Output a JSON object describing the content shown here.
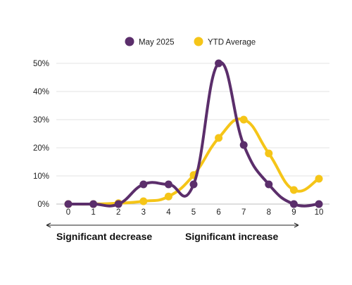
{
  "chart_data": {
    "type": "line",
    "title": "",
    "xlabel": "",
    "ylabel": "",
    "x": [
      0,
      1,
      2,
      3,
      4,
      5,
      6,
      7,
      8,
      9,
      10
    ],
    "ylim": [
      0,
      50
    ],
    "yticks": [
      "0%",
      "10%",
      "20%",
      "30%",
      "40%",
      "50%"
    ],
    "grid": true,
    "legend_position": "top",
    "series": [
      {
        "name": "May 2025",
        "color": "#5B2E6B",
        "values": [
          0,
          0,
          0,
          7,
          7,
          7,
          50,
          21,
          7,
          0,
          0
        ]
      },
      {
        "name": "YTD Average",
        "color": "#F5C518",
        "values": [
          0,
          0,
          0.3,
          1,
          2.7,
          10.3,
          23.5,
          30,
          18,
          5,
          9
        ]
      }
    ],
    "annotations": {
      "left": "Significant decrease",
      "right": "Significant increase"
    }
  }
}
